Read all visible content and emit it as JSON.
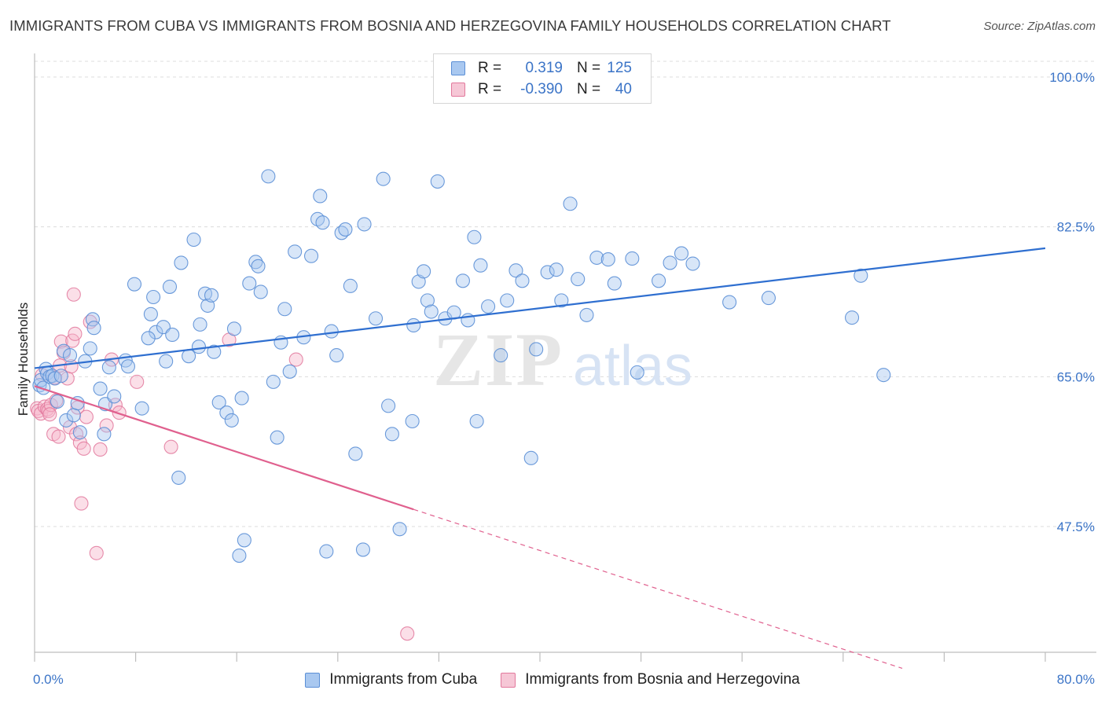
{
  "title": "IMMIGRANTS FROM CUBA VS IMMIGRANTS FROM BOSNIA AND HERZEGOVINA FAMILY HOUSEHOLDS CORRELATION CHART",
  "source": "Source: ZipAtlas.com",
  "watermark": "ZIPatlas",
  "legend": {
    "rows": [
      {
        "r_label": "R =",
        "r_value": "0.319",
        "n_label": "N =",
        "n_value": "125"
      },
      {
        "r_label": "R =",
        "r_value": "-0.390",
        "n_label": "N =",
        "n_value": "40"
      }
    ]
  },
  "colors": {
    "series1_fill": "#a9c8f0",
    "series1_stroke": "#5b8fd6",
    "series1_line": "#2f6fd0",
    "series2_fill": "#f6b9cc",
    "series2_stroke": "#e2789c",
    "series2_line": "#e0608e",
    "axis_text": "#3b74c7",
    "grid": "#dcdcdc"
  },
  "chart_data": {
    "type": "scatter",
    "title": "IMMIGRANTS FROM CUBA VS IMMIGRANTS FROM BOSNIA AND HERZEGOVINA FAMILY HOUSEHOLDS CORRELATION CHART",
    "xlabel": "",
    "ylabel": "Family Households",
    "xlim": [
      0,
      80
    ],
    "ylim": [
      33,
      103
    ],
    "x_tick_labels": [
      "0.0%",
      "80.0%"
    ],
    "y_ticks": [
      47.5,
      65.0,
      82.5,
      100.0
    ],
    "y_tick_labels": [
      "47.5%",
      "65.0%",
      "82.5%",
      "100.0%"
    ],
    "grid": true,
    "legend_position": "bottom",
    "series": [
      {
        "name": "Immigrants from Cuba",
        "trend": {
          "x": [
            0,
            80
          ],
          "y": [
            66.0,
            80.0
          ]
        },
        "points": [
          [
            0.4,
            64.0
          ],
          [
            0.5,
            64.6
          ],
          [
            0.7,
            63.7
          ],
          [
            0.9,
            65.9
          ],
          [
            1.0,
            65.4
          ],
          [
            1.2,
            65.0
          ],
          [
            1.4,
            65.1
          ],
          [
            1.6,
            64.8
          ],
          [
            1.8,
            62.1
          ],
          [
            2.1,
            65.1
          ],
          [
            2.3,
            68.0
          ],
          [
            2.5,
            59.9
          ],
          [
            3.1,
            60.5
          ],
          [
            3.4,
            61.9
          ],
          [
            3.6,
            58.5
          ],
          [
            4.0,
            66.8
          ],
          [
            4.4,
            68.3
          ],
          [
            4.6,
            71.7
          ],
          [
            4.7,
            70.7
          ],
          [
            5.2,
            63.6
          ],
          [
            5.5,
            58.3
          ],
          [
            5.6,
            61.8
          ],
          [
            5.9,
            66.1
          ],
          [
            6.3,
            62.7
          ],
          [
            7.2,
            66.9
          ],
          [
            7.4,
            66.2
          ],
          [
            7.9,
            75.8
          ],
          [
            8.5,
            61.3
          ],
          [
            9.2,
            72.3
          ],
          [
            9.4,
            74.3
          ],
          [
            9.6,
            70.2
          ],
          [
            10.2,
            70.8
          ],
          [
            10.4,
            66.8
          ],
          [
            10.7,
            75.5
          ],
          [
            10.9,
            69.9
          ],
          [
            11.4,
            53.2
          ],
          [
            11.6,
            78.3
          ],
          [
            12.2,
            67.4
          ],
          [
            12.6,
            81.0
          ],
          [
            13.1,
            71.1
          ],
          [
            13.5,
            74.7
          ],
          [
            13.7,
            73.3
          ],
          [
            14.0,
            74.5
          ],
          [
            14.2,
            67.9
          ],
          [
            14.6,
            62.0
          ],
          [
            15.2,
            60.8
          ],
          [
            15.6,
            59.9
          ],
          [
            15.8,
            70.6
          ],
          [
            16.4,
            62.5
          ],
          [
            16.6,
            45.9
          ],
          [
            16.2,
            44.1
          ],
          [
            17.0,
            75.9
          ],
          [
            17.5,
            78.4
          ],
          [
            17.7,
            77.9
          ],
          [
            17.9,
            74.9
          ],
          [
            18.5,
            88.4
          ],
          [
            18.9,
            64.4
          ],
          [
            19.2,
            57.9
          ],
          [
            19.5,
            69.0
          ],
          [
            19.8,
            72.9
          ],
          [
            20.2,
            65.6
          ],
          [
            20.6,
            79.6
          ],
          [
            21.3,
            69.6
          ],
          [
            21.9,
            79.1
          ],
          [
            22.4,
            83.4
          ],
          [
            22.6,
            86.1
          ],
          [
            22.8,
            83.0
          ],
          [
            23.1,
            44.6
          ],
          [
            23.5,
            70.3
          ],
          [
            23.9,
            67.5
          ],
          [
            24.3,
            81.8
          ],
          [
            24.6,
            82.2
          ],
          [
            25.0,
            75.6
          ],
          [
            25.4,
            56.0
          ],
          [
            26.1,
            82.8
          ],
          [
            27.0,
            71.8
          ],
          [
            27.6,
            88.1
          ],
          [
            28.0,
            61.6
          ],
          [
            28.3,
            58.3
          ],
          [
            28.9,
            47.2
          ],
          [
            29.9,
            59.8
          ],
          [
            30.4,
            76.1
          ],
          [
            30.8,
            77.3
          ],
          [
            31.1,
            73.9
          ],
          [
            31.4,
            72.6
          ],
          [
            31.9,
            87.8
          ],
          [
            32.5,
            71.8
          ],
          [
            33.2,
            72.5
          ],
          [
            33.9,
            76.2
          ],
          [
            34.3,
            71.6
          ],
          [
            34.8,
            81.3
          ],
          [
            35.3,
            78.0
          ],
          [
            35.9,
            73.2
          ],
          [
            36.9,
            67.5
          ],
          [
            37.4,
            73.9
          ],
          [
            38.1,
            77.4
          ],
          [
            38.6,
            76.2
          ],
          [
            39.3,
            55.5
          ],
          [
            39.7,
            68.2
          ],
          [
            40.6,
            77.2
          ],
          [
            41.3,
            77.5
          ],
          [
            41.7,
            73.9
          ],
          [
            42.4,
            85.2
          ],
          [
            43.0,
            76.4
          ],
          [
            43.7,
            72.2
          ],
          [
            44.5,
            78.9
          ],
          [
            45.4,
            78.7
          ],
          [
            45.9,
            75.9
          ],
          [
            47.3,
            78.8
          ],
          [
            47.7,
            65.5
          ],
          [
            49.4,
            76.2
          ],
          [
            50.3,
            78.3
          ],
          [
            51.2,
            79.4
          ],
          [
            52.1,
            78.2
          ],
          [
            55.0,
            73.7
          ],
          [
            58.1,
            74.2
          ],
          [
            64.7,
            71.9
          ],
          [
            65.4,
            76.8
          ],
          [
            67.2,
            65.2
          ],
          [
            35.0,
            59.8
          ],
          [
            26.0,
            44.8
          ],
          [
            9.0,
            69.5
          ],
          [
            13.0,
            68.5
          ],
          [
            30.0,
            71.0
          ],
          [
            2.8,
            67.5
          ]
        ]
      },
      {
        "name": "Immigrants from Bosnia and Herzegovina",
        "trend": {
          "x": [
            0,
            30.0
          ],
          "y": [
            63.9,
            49.5
          ]
        },
        "trend_dashed": {
          "x": [
            30.0,
            80
          ],
          "y": [
            49.5,
            25.5
          ]
        },
        "points": [
          [
            0.2,
            61.3
          ],
          [
            0.3,
            61.0
          ],
          [
            0.5,
            60.7
          ],
          [
            0.6,
            65.2
          ],
          [
            0.8,
            61.5
          ],
          [
            1.0,
            61.2
          ],
          [
            1.1,
            61.0
          ],
          [
            1.3,
            61.7
          ],
          [
            1.5,
            58.3
          ],
          [
            1.6,
            64.9
          ],
          [
            1.7,
            62.2
          ],
          [
            1.9,
            58.0
          ],
          [
            2.1,
            69.1
          ],
          [
            2.3,
            67.8
          ],
          [
            2.6,
            64.8
          ],
          [
            2.8,
            59.1
          ],
          [
            3.0,
            69.2
          ],
          [
            3.1,
            74.6
          ],
          [
            3.2,
            70.0
          ],
          [
            3.3,
            58.3
          ],
          [
            3.4,
            61.4
          ],
          [
            3.6,
            57.3
          ],
          [
            3.7,
            50.2
          ],
          [
            3.9,
            56.6
          ],
          [
            4.1,
            60.3
          ],
          [
            4.4,
            71.4
          ],
          [
            4.9,
            44.4
          ],
          [
            5.2,
            56.5
          ],
          [
            5.7,
            59.3
          ],
          [
            6.1,
            67.0
          ],
          [
            6.4,
            61.7
          ],
          [
            6.7,
            60.8
          ],
          [
            8.1,
            64.4
          ],
          [
            10.8,
            56.8
          ],
          [
            15.4,
            69.3
          ],
          [
            20.7,
            67.0
          ],
          [
            29.5,
            35.0
          ],
          [
            1.2,
            60.6
          ],
          [
            2.0,
            66.3
          ],
          [
            2.9,
            66.2
          ]
        ]
      }
    ]
  }
}
